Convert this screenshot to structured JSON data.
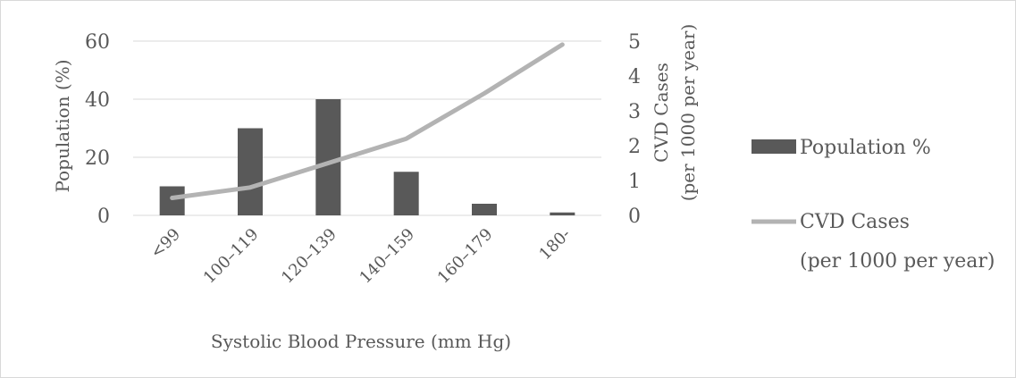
{
  "chart_data": {
    "type": "bar",
    "categories": [
      "<99",
      "100–119",
      "120–139",
      "140–159",
      "160–179",
      "180-"
    ],
    "xlabel": "Systolic Blood Pressure (mm Hg)",
    "ylabel": "Population (%)",
    "ylim": [
      0,
      60
    ],
    "yticks": [
      0,
      20,
      40,
      60
    ],
    "y2label_line1": "CVD Cases",
    "y2label_line2": "(per 1000 per year)",
    "y2lim": [
      0,
      5
    ],
    "y2ticks": [
      0,
      1,
      2,
      3,
      4,
      5
    ],
    "grid": true,
    "legend_position": "right",
    "series": [
      {
        "name": "Population %",
        "type": "bar",
        "axis": "left",
        "color": "#595959",
        "values": [
          10,
          30,
          40,
          15,
          4,
          1
        ]
      },
      {
        "name_line1": "CVD Cases",
        "name_line2": "(per 1000 per year)",
        "type": "line",
        "axis": "right",
        "color": "#b3b3b3",
        "values": [
          0.5,
          0.8,
          1.5,
          2.2,
          3.5,
          4.9
        ]
      }
    ]
  }
}
